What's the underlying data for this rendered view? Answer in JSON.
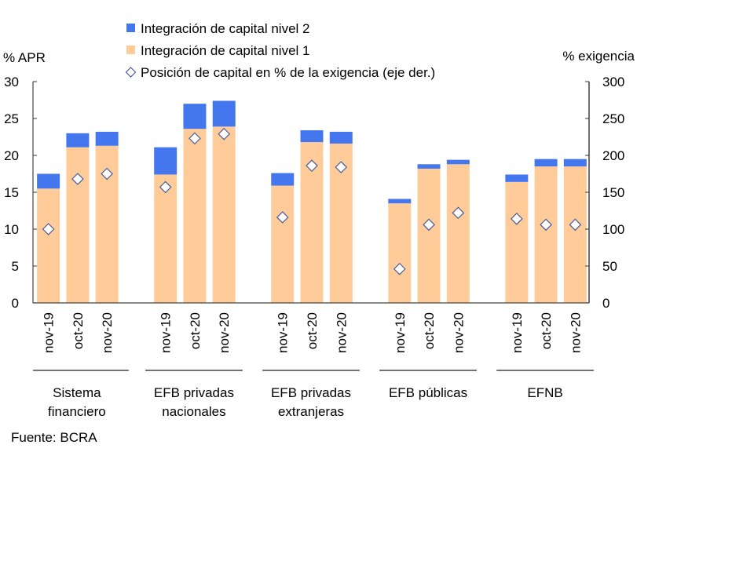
{
  "chart_data": {
    "type": "bar",
    "stacked": true,
    "title": "",
    "left_axis": {
      "label": "% APR",
      "ylim": [
        0,
        30
      ],
      "ticks": [
        0,
        5,
        10,
        15,
        20,
        25,
        30
      ]
    },
    "right_axis": {
      "label": "% exigencia",
      "ylim": [
        0,
        300
      ],
      "ticks": [
        0,
        50,
        100,
        150,
        200,
        250,
        300
      ]
    },
    "legend": {
      "placement": "top-center",
      "entries": [
        {
          "key": "tier2",
          "label": "Integración de capital nivel 2",
          "marker": "square",
          "color": "#4477EE"
        },
        {
          "key": "tier1",
          "label": "Integración de capital nivel 1",
          "marker": "square",
          "color": "#FFCC99"
        },
        {
          "key": "position",
          "label": "Posición de capital en % de la exigencia (eje der.)",
          "marker": "diamond",
          "color": "#4A5A9A"
        }
      ]
    },
    "groups": [
      {
        "name": "Sistema financiero",
        "label_lines": [
          "Sistema",
          "financiero"
        ],
        "categories": [
          "nov-19",
          "oct-20",
          "nov-20"
        ],
        "tier1": [
          15.5,
          21.1,
          21.3
        ],
        "tier2": [
          2.0,
          1.9,
          1.9
        ],
        "position": [
          100,
          168,
          175
        ]
      },
      {
        "name": "EFB privadas nacionales",
        "label_lines": [
          "EFB privadas",
          "nacionales"
        ],
        "categories": [
          "nov-19",
          "oct-20",
          "nov-20"
        ],
        "tier1": [
          17.4,
          23.6,
          23.9
        ],
        "tier2": [
          3.7,
          3.4,
          3.5
        ],
        "position": [
          157,
          223,
          229
        ]
      },
      {
        "name": "EFB privadas extranjeras",
        "label_lines": [
          "EFB privadas",
          "extranjeras"
        ],
        "categories": [
          "nov-19",
          "oct-20",
          "nov-20"
        ],
        "tier1": [
          15.9,
          21.8,
          21.6
        ],
        "tier2": [
          1.7,
          1.6,
          1.6
        ],
        "position": [
          116,
          186,
          184
        ]
      },
      {
        "name": "EFB públicas",
        "label_lines": [
          "EFB públicas"
        ],
        "categories": [
          "nov-19",
          "oct-20",
          "nov-20"
        ],
        "tier1": [
          13.5,
          18.2,
          18.8
        ],
        "tier2": [
          0.6,
          0.6,
          0.6
        ],
        "position": [
          46,
          106,
          122
        ]
      },
      {
        "name": "EFNB",
        "label_lines": [
          "EFNB"
        ],
        "categories": [
          "nov-19",
          "oct-20",
          "nov-20"
        ],
        "tier1": [
          16.4,
          18.5,
          18.5
        ],
        "tier2": [
          1.0,
          1.0,
          1.0
        ],
        "position": [
          114,
          106,
          106
        ]
      }
    ],
    "source": "Fuente: BCRA",
    "grid": false
  }
}
